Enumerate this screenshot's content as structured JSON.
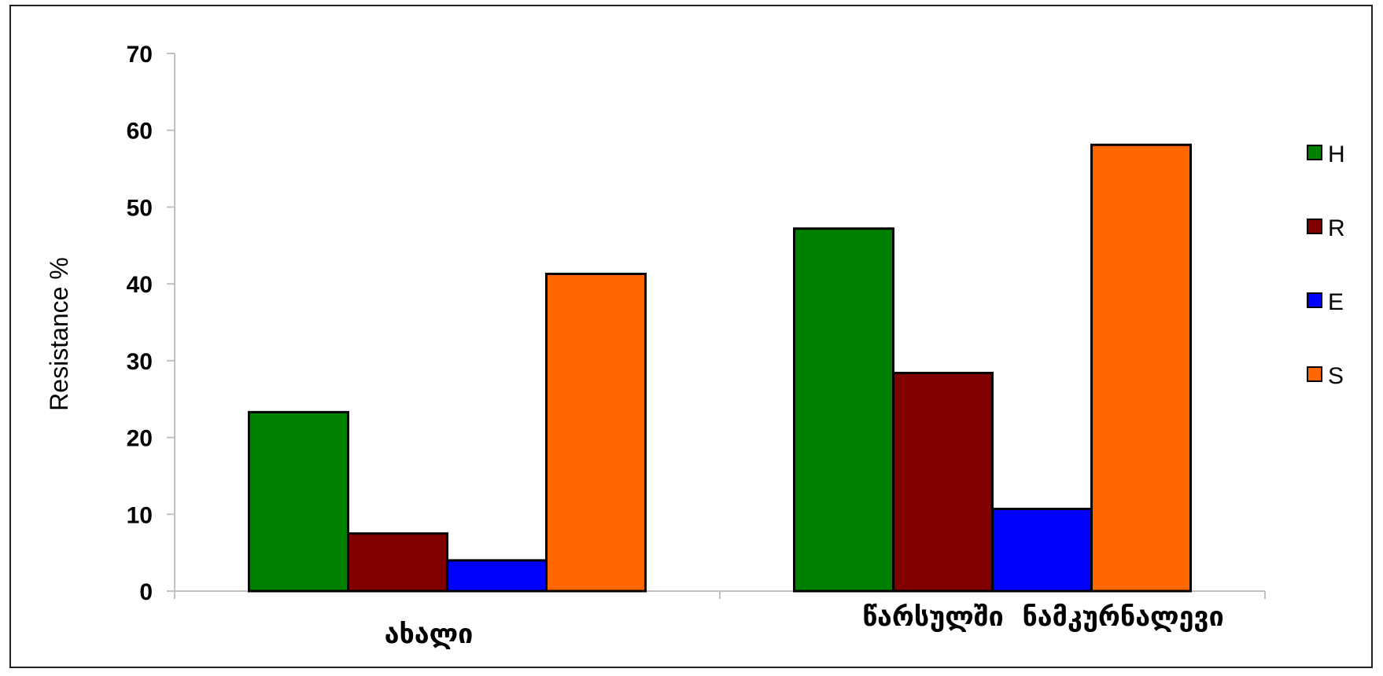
{
  "chart_data": {
    "type": "bar",
    "title": "",
    "xlabel": "",
    "ylabel": "Resistance %",
    "ylim": [
      0,
      70
    ],
    "yticks": [
      0,
      10,
      20,
      30,
      40,
      50,
      60,
      70
    ],
    "grid": false,
    "legend_position": "right",
    "categories": [
      "ახალი",
      "წარსულში  ნამკურნალევი"
    ],
    "series": [
      {
        "name": "H",
        "color": "#008000",
        "values": [
          23.3,
          47.2
        ]
      },
      {
        "name": "R",
        "color": "#800000",
        "values": [
          7.5,
          28.4
        ]
      },
      {
        "name": "E",
        "color": "#0000FF",
        "values": [
          4.0,
          10.7
        ]
      },
      {
        "name": "S",
        "color": "#FF6600",
        "values": [
          41.3,
          58.1
        ]
      }
    ]
  }
}
